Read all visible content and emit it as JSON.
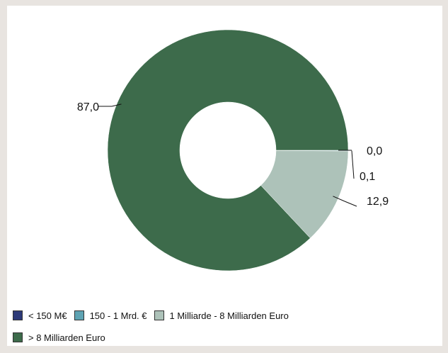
{
  "chart_data": {
    "type": "pie",
    "variant": "donut",
    "categories": [
      "< 150 M€",
      "150 - 1 Mrd. €",
      "1 Milliarde - 8 Milliarden Euro",
      "> 8 Milliarden Euro"
    ],
    "values": [
      0.0,
      0.1,
      12.9,
      87.0
    ],
    "data_labels": [
      "0,0",
      "0,1",
      "12,9",
      "87,0"
    ],
    "colors": [
      "#2d3a78",
      "#5ea3b3",
      "#adc2b9",
      "#3d6b4b"
    ],
    "legend_position": "bottom-left"
  }
}
